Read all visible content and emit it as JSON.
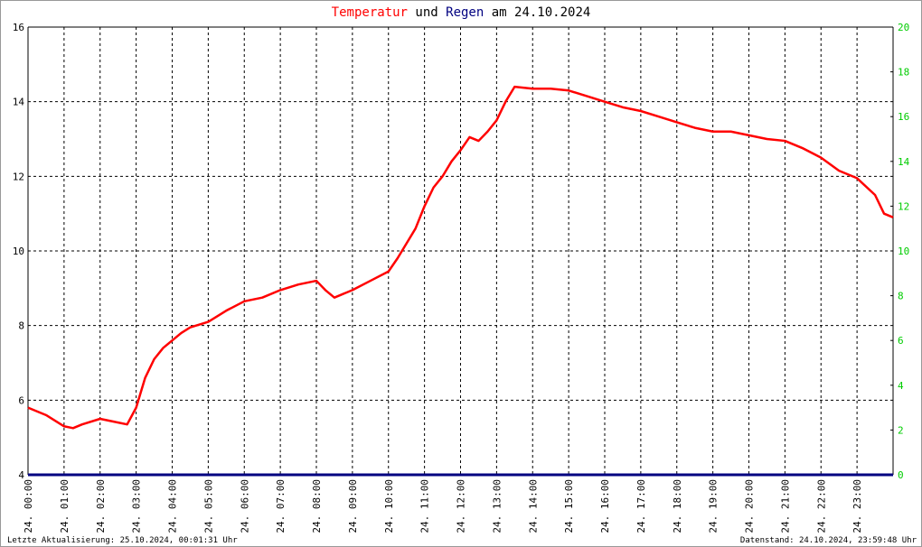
{
  "chart_data": {
    "type": "line",
    "title_parts": [
      "Temperatur",
      "und",
      "Regen",
      "am 24.10.2024"
    ],
    "title_colors": [
      "#ff0000",
      "#000000",
      "#000080",
      "#000000"
    ],
    "footer_left": "Letzte Aktualisierung: 25.10.2024, 00:01:31 Uhr",
    "footer_right": "Datenstand: 24.10.2024, 23:59:48 Uhr",
    "xlim": [
      0,
      24
    ],
    "xticks": [
      {
        "value": 0,
        "label": "24. 00:00"
      },
      {
        "value": 1,
        "label": "24. 01:00"
      },
      {
        "value": 2,
        "label": "24. 02:00"
      },
      {
        "value": 3,
        "label": "24. 03:00"
      },
      {
        "value": 4,
        "label": "24. 04:00"
      },
      {
        "value": 5,
        "label": "24. 05:00"
      },
      {
        "value": 6,
        "label": "24. 06:00"
      },
      {
        "value": 7,
        "label": "24. 07:00"
      },
      {
        "value": 8,
        "label": "24. 08:00"
      },
      {
        "value": 9,
        "label": "24. 09:00"
      },
      {
        "value": 10,
        "label": "24. 10:00"
      },
      {
        "value": 11,
        "label": "24. 11:00"
      },
      {
        "value": 12,
        "label": "24. 12:00"
      },
      {
        "value": 13,
        "label": "24. 13:00"
      },
      {
        "value": 14,
        "label": "24. 14:00"
      },
      {
        "value": 15,
        "label": "24. 15:00"
      },
      {
        "value": 16,
        "label": "24. 16:00"
      },
      {
        "value": 17,
        "label": "24. 17:00"
      },
      {
        "value": 18,
        "label": "24. 18:00"
      },
      {
        "value": 19,
        "label": "24. 19:00"
      },
      {
        "value": 20,
        "label": "24. 20:00"
      },
      {
        "value": 21,
        "label": "24. 21:00"
      },
      {
        "value": 22,
        "label": "24. 22:00"
      },
      {
        "value": 23,
        "label": "24. 23:00"
      }
    ],
    "ylim": [
      4,
      16
    ],
    "yticks": [
      4,
      6,
      8,
      10,
      12,
      14,
      16
    ],
    "y2lim": [
      0,
      20
    ],
    "y2ticks": [
      0,
      2,
      4,
      6,
      8,
      10,
      12,
      14,
      16,
      18,
      20
    ],
    "y2_color": "#00cc00",
    "grid": true,
    "series": [
      {
        "name": "Temperatur",
        "color": "#ff0000",
        "x": [
          0,
          0.5,
          1,
          1.25,
          1.5,
          2,
          2.5,
          2.75,
          3,
          3.25,
          3.5,
          3.75,
          4,
          4.25,
          4.5,
          5,
          5.5,
          6,
          6.5,
          7,
          7.5,
          8,
          8.25,
          8.5,
          9,
          9.5,
          10,
          10.25,
          10.5,
          10.75,
          11,
          11.25,
          11.5,
          11.75,
          12,
          12.25,
          12.5,
          12.75,
          13,
          13.25,
          13.5,
          14,
          14.5,
          15,
          15.5,
          16,
          16.5,
          17,
          17.5,
          18,
          18.5,
          19,
          19.5,
          20,
          20.5,
          21,
          21.5,
          22,
          22.5,
          23,
          23.5,
          23.75,
          24
        ],
        "values": [
          5.8,
          5.6,
          5.3,
          5.25,
          5.35,
          5.5,
          5.4,
          5.35,
          5.8,
          6.6,
          7.1,
          7.4,
          7.6,
          7.8,
          7.95,
          8.1,
          8.4,
          8.65,
          8.75,
          8.95,
          9.1,
          9.2,
          8.95,
          8.75,
          8.95,
          9.2,
          9.45,
          9.8,
          10.2,
          10.6,
          11.2,
          11.7,
          12.0,
          12.4,
          12.7,
          13.05,
          12.95,
          13.2,
          13.5,
          14.0,
          14.4,
          14.35,
          14.35,
          14.3,
          14.15,
          14.0,
          13.85,
          13.75,
          13.6,
          13.45,
          13.3,
          13.2,
          13.2,
          13.1,
          13.0,
          12.95,
          12.75,
          12.5,
          12.15,
          11.95,
          11.5,
          11.0,
          10.9
        ]
      },
      {
        "name": "Regen",
        "color": "#000080",
        "axis": "y2",
        "x": [
          0,
          24
        ],
        "values": [
          0,
          0
        ]
      }
    ]
  }
}
